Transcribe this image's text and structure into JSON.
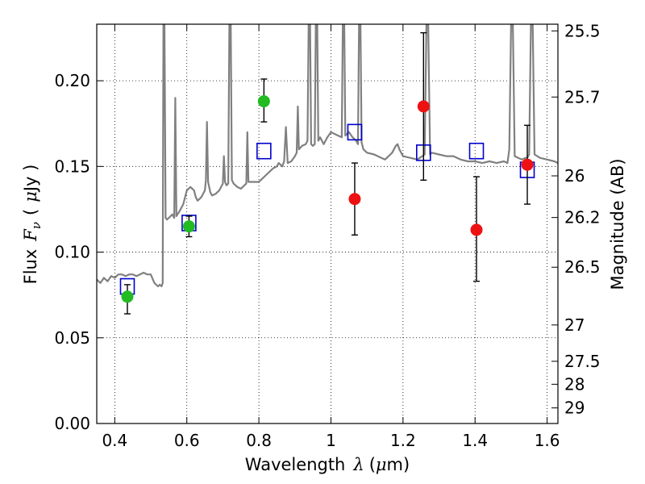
{
  "chart_data": {
    "type": "scatter",
    "xlabel": "Wavelength",
    "xlabel_math": "λ",
    "xlabel_unit_open": "(",
    "xlabel_unit_mu": "μ",
    "xlabel_unit_rest": "m)",
    "ylabel": "Flux",
    "ylabel_math_F": "F",
    "ylabel_math_sub": "ν",
    "ylabel_unit_open": "(",
    "ylabel_unit_mu": "μ",
    "ylabel_unit_rest": "Jy )",
    "y2label": "Magnitude (AB)",
    "xlim": [
      0.35,
      1.63
    ],
    "ylim": [
      0.0,
      0.233
    ],
    "xticks": [
      {
        "value": 0.4,
        "label": "0.4"
      },
      {
        "value": 0.6,
        "label": "0.6"
      },
      {
        "value": 0.8,
        "label": "0.8"
      },
      {
        "value": 1.0,
        "label": "1"
      },
      {
        "value": 1.2,
        "label": "1.2"
      },
      {
        "value": 1.4,
        "label": "1.4"
      },
      {
        "value": 1.6,
        "label": "1.6"
      }
    ],
    "yticks": [
      {
        "value": 0.0,
        "label": "0.00"
      },
      {
        "value": 0.05,
        "label": "0.05"
      },
      {
        "value": 0.1,
        "label": "0.10"
      },
      {
        "value": 0.15,
        "label": "0.15"
      },
      {
        "value": 0.2,
        "label": "0.20"
      }
    ],
    "y2ticks": [
      {
        "label": "25.5",
        "flux": 0.2291
      },
      {
        "label": "25.7",
        "flux": 0.1905
      },
      {
        "label": "26",
        "flux": 0.1445
      },
      {
        "label": "26.2",
        "flux": 0.1202
      },
      {
        "label": "26.5",
        "flux": 0.0912
      },
      {
        "label": "27",
        "flux": 0.0575
      },
      {
        "label": "27.5",
        "flux": 0.0363
      },
      {
        "label": "28",
        "flux": 0.0229
      },
      {
        "label": "29",
        "flux": 0.0091
      }
    ],
    "grid": true,
    "colors": {
      "model": "#808080",
      "green": "#22bb22",
      "red": "#ee1111",
      "box": "#0000cc",
      "errorbar": "#000000"
    },
    "model_spectrum": [
      [
        0.35,
        0.084
      ],
      [
        0.36,
        0.082
      ],
      [
        0.37,
        0.085
      ],
      [
        0.38,
        0.083
      ],
      [
        0.39,
        0.086
      ],
      [
        0.4,
        0.085
      ],
      [
        0.41,
        0.087
      ],
      [
        0.42,
        0.087
      ],
      [
        0.43,
        0.086
      ],
      [
        0.44,
        0.087
      ],
      [
        0.45,
        0.087
      ],
      [
        0.46,
        0.086
      ],
      [
        0.47,
        0.087
      ],
      [
        0.48,
        0.088
      ],
      [
        0.49,
        0.087
      ],
      [
        0.5,
        0.087
      ],
      [
        0.51,
        0.082
      ],
      [
        0.52,
        0.08
      ],
      [
        0.525,
        0.081
      ],
      [
        0.53,
        0.08
      ],
      [
        0.533,
        0.082
      ],
      [
        0.535,
        0.233
      ],
      [
        0.538,
        0.233
      ],
      [
        0.541,
        0.12
      ],
      [
        0.545,
        0.119
      ],
      [
        0.55,
        0.12
      ],
      [
        0.56,
        0.122
      ],
      [
        0.565,
        0.12
      ],
      [
        0.568,
        0.19
      ],
      [
        0.571,
        0.121
      ],
      [
        0.58,
        0.124
      ],
      [
        0.59,
        0.128
      ],
      [
        0.6,
        0.136
      ],
      [
        0.61,
        0.138
      ],
      [
        0.62,
        0.136
      ],
      [
        0.625,
        0.132
      ],
      [
        0.63,
        0.13
      ],
      [
        0.64,
        0.132
      ],
      [
        0.65,
        0.136
      ],
      [
        0.653,
        0.142
      ],
      [
        0.656,
        0.176
      ],
      [
        0.659,
        0.141
      ],
      [
        0.665,
        0.135
      ],
      [
        0.67,
        0.133
      ],
      [
        0.68,
        0.134
      ],
      [
        0.69,
        0.136
      ],
      [
        0.7,
        0.14
      ],
      [
        0.703,
        0.156
      ],
      [
        0.706,
        0.141
      ],
      [
        0.71,
        0.139
      ],
      [
        0.715,
        0.14
      ],
      [
        0.718,
        0.233
      ],
      [
        0.722,
        0.233
      ],
      [
        0.725,
        0.142
      ],
      [
        0.73,
        0.14
      ],
      [
        0.74,
        0.138
      ],
      [
        0.75,
        0.137
      ],
      [
        0.76,
        0.139
      ],
      [
        0.765,
        0.14
      ],
      [
        0.768,
        0.17
      ],
      [
        0.771,
        0.141
      ],
      [
        0.78,
        0.141
      ],
      [
        0.79,
        0.141
      ],
      [
        0.8,
        0.141
      ],
      [
        0.81,
        0.143
      ],
      [
        0.82,
        0.145
      ],
      [
        0.83,
        0.147
      ],
      [
        0.84,
        0.149
      ],
      [
        0.85,
        0.15
      ],
      [
        0.855,
        0.152
      ],
      [
        0.86,
        0.151
      ],
      [
        0.865,
        0.15
      ],
      [
        0.87,
        0.153
      ],
      [
        0.875,
        0.173
      ],
      [
        0.88,
        0.152
      ],
      [
        0.89,
        0.153
      ],
      [
        0.9,
        0.156
      ],
      [
        0.905,
        0.158
      ],
      [
        0.908,
        0.185
      ],
      [
        0.911,
        0.16
      ],
      [
        0.92,
        0.162
      ],
      [
        0.93,
        0.163
      ],
      [
        0.935,
        0.165
      ],
      [
        0.938,
        0.233
      ],
      [
        0.942,
        0.233
      ],
      [
        0.945,
        0.163
      ],
      [
        0.95,
        0.162
      ],
      [
        0.955,
        0.163
      ],
      [
        0.958,
        0.233
      ],
      [
        0.962,
        0.233
      ],
      [
        0.965,
        0.165
      ],
      [
        0.97,
        0.167
      ],
      [
        0.975,
        0.165
      ],
      [
        0.98,
        0.163
      ],
      [
        0.99,
        0.167
      ],
      [
        1.0,
        0.17
      ],
      [
        1.01,
        0.169
      ],
      [
        1.02,
        0.168
      ],
      [
        1.03,
        0.167
      ],
      [
        1.033,
        0.233
      ],
      [
        1.037,
        0.233
      ],
      [
        1.04,
        0.168
      ],
      [
        1.05,
        0.17
      ],
      [
        1.06,
        0.167
      ],
      [
        1.07,
        0.165
      ],
      [
        1.075,
        0.163
      ],
      [
        1.078,
        0.233
      ],
      [
        1.082,
        0.233
      ],
      [
        1.085,
        0.164
      ],
      [
        1.09,
        0.16
      ],
      [
        1.1,
        0.158
      ],
      [
        1.12,
        0.157
      ],
      [
        1.14,
        0.155
      ],
      [
        1.15,
        0.154
      ],
      [
        1.16,
        0.156
      ],
      [
        1.17,
        0.158
      ],
      [
        1.18,
        0.162
      ],
      [
        1.185,
        0.163
      ],
      [
        1.19,
        0.16
      ],
      [
        1.2,
        0.156
      ],
      [
        1.22,
        0.155
      ],
      [
        1.24,
        0.154
      ],
      [
        1.26,
        0.157
      ],
      [
        1.265,
        0.233
      ],
      [
        1.27,
        0.233
      ],
      [
        1.275,
        0.157
      ],
      [
        1.28,
        0.158
      ],
      [
        1.3,
        0.157
      ],
      [
        1.32,
        0.156
      ],
      [
        1.34,
        0.156
      ],
      [
        1.36,
        0.154
      ],
      [
        1.38,
        0.153
      ],
      [
        1.4,
        0.153
      ],
      [
        1.42,
        0.152
      ],
      [
        1.44,
        0.153
      ],
      [
        1.46,
        0.152
      ],
      [
        1.48,
        0.153
      ],
      [
        1.49,
        0.152
      ],
      [
        1.495,
        0.16
      ],
      [
        1.5,
        0.233
      ],
      [
        1.505,
        0.233
      ],
      [
        1.51,
        0.156
      ],
      [
        1.52,
        0.155
      ],
      [
        1.53,
        0.154
      ],
      [
        1.54,
        0.155
      ],
      [
        1.545,
        0.155
      ],
      [
        1.55,
        0.157
      ],
      [
        1.555,
        0.233
      ],
      [
        1.56,
        0.233
      ],
      [
        1.565,
        0.157
      ],
      [
        1.58,
        0.155
      ],
      [
        1.6,
        0.154
      ],
      [
        1.62,
        0.153
      ],
      [
        1.63,
        0.152
      ]
    ],
    "model_boxes": [
      {
        "x": 0.435,
        "y": 0.08
      },
      {
        "x": 0.606,
        "y": 0.117
      },
      {
        "x": 0.814,
        "y": 0.159
      },
      {
        "x": 1.066,
        "y": 0.17
      },
      {
        "x": 1.257,
        "y": 0.158
      },
      {
        "x": 1.404,
        "y": 0.159
      },
      {
        "x": 1.545,
        "y": 0.148
      }
    ],
    "detections": [
      {
        "x": 0.435,
        "y": 0.074,
        "err_low": 0.064,
        "err_high": 0.081
      },
      {
        "x": 0.606,
        "y": 0.115,
        "err_low": 0.109,
        "err_high": 0.121
      },
      {
        "x": 0.814,
        "y": 0.188,
        "err_low": 0.176,
        "err_high": 0.201
      }
    ],
    "red_points": [
      {
        "x": 1.066,
        "y": 0.131,
        "err_low": 0.11,
        "err_high": 0.152
      },
      {
        "x": 1.257,
        "y": 0.185,
        "err_low": 0.142,
        "err_high": 0.228
      },
      {
        "x": 1.404,
        "y": 0.113,
        "err_low": 0.083,
        "err_high": 0.144
      },
      {
        "x": 1.545,
        "y": 0.151,
        "err_low": 0.128,
        "err_high": 0.174
      }
    ]
  }
}
